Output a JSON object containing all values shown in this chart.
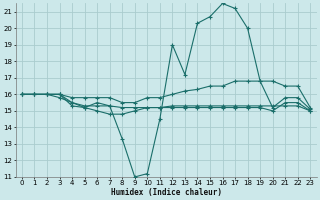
{
  "xlabel": "Humidex (Indice chaleur)",
  "bg_color": "#cce8ea",
  "grid_color": "#aaccce",
  "line_color": "#1a6e6a",
  "xlim": [
    -0.5,
    23.5
  ],
  "ylim": [
    11,
    21.5
  ],
  "yticks": [
    11,
    12,
    13,
    14,
    15,
    16,
    17,
    18,
    19,
    20,
    21
  ],
  "xticks": [
    0,
    1,
    2,
    3,
    4,
    5,
    6,
    7,
    8,
    9,
    10,
    11,
    12,
    13,
    14,
    15,
    16,
    17,
    18,
    19,
    20,
    21,
    22,
    23
  ],
  "series": [
    {
      "x": [
        0,
        1,
        2,
        3,
        4,
        5,
        6,
        7,
        8,
        9,
        10,
        11,
        12,
        13,
        14,
        15,
        16,
        17,
        18,
        19,
        20,
        21,
        22,
        23
      ],
      "y": [
        16,
        16,
        16,
        16,
        15.3,
        15.2,
        15.5,
        15.3,
        13.3,
        11.0,
        11.2,
        14.5,
        19.0,
        17.2,
        20.3,
        20.7,
        21.5,
        21.2,
        20.0,
        16.8,
        15.2,
        15.8,
        15.8,
        15.1
      ]
    },
    {
      "x": [
        0,
        1,
        2,
        3,
        4,
        5,
        6,
        7,
        8,
        9,
        10,
        11,
        12,
        13,
        14,
        15,
        16,
        17,
        18,
        19,
        20,
        21,
        22,
        23
      ],
      "y": [
        16,
        16,
        16,
        16,
        15.8,
        15.8,
        15.8,
        15.8,
        15.5,
        15.5,
        15.8,
        15.8,
        16.0,
        16.2,
        16.3,
        16.5,
        16.5,
        16.8,
        16.8,
        16.8,
        16.8,
        16.5,
        16.5,
        15.2
      ]
    },
    {
      "x": [
        0,
        1,
        2,
        3,
        4,
        5,
        6,
        7,
        8,
        9,
        10,
        11,
        12,
        13,
        14,
        15,
        16,
        17,
        18,
        19,
        20,
        21,
        22,
        23
      ],
      "y": [
        16,
        16,
        16,
        15.8,
        15.5,
        15.3,
        15.3,
        15.3,
        15.2,
        15.2,
        15.2,
        15.2,
        15.3,
        15.3,
        15.3,
        15.3,
        15.3,
        15.3,
        15.3,
        15.3,
        15.3,
        15.3,
        15.3,
        15.0
      ]
    },
    {
      "x": [
        0,
        1,
        2,
        3,
        4,
        5,
        6,
        7,
        8,
        9,
        10,
        11,
        12,
        13,
        14,
        15,
        16,
        17,
        18,
        19,
        20,
        21,
        22,
        23
      ],
      "y": [
        16,
        16,
        16,
        16,
        15.5,
        15.2,
        15.0,
        14.8,
        14.8,
        15.0,
        15.2,
        15.2,
        15.2,
        15.2,
        15.2,
        15.2,
        15.2,
        15.2,
        15.2,
        15.2,
        15.0,
        15.5,
        15.5,
        15.0
      ]
    }
  ]
}
